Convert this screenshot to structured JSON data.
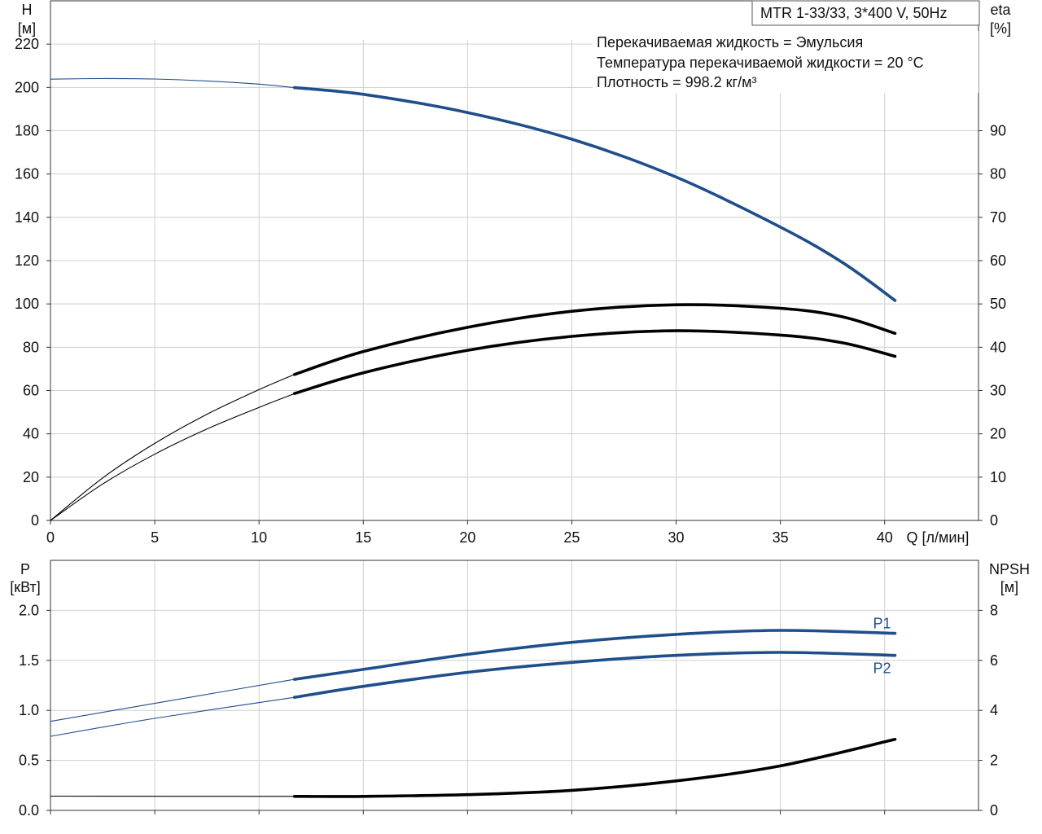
{
  "model_box": "MTR 1-33/33, 3*400 V, 50Hz",
  "info_lines": [
    "Перекачиваемая жидкость = Эмульсия",
    "Температура перекачиваемой жидкости = 20 °C",
    "Плотность = 998.2 кг/м³"
  ],
  "chart_data": [
    {
      "type": "line",
      "x_label": "Q [л/мин]",
      "x_ticks": [
        0,
        5,
        10,
        15,
        20,
        25,
        30,
        35,
        40
      ],
      "xlim": [
        0,
        44.5
      ],
      "grid": true,
      "left_axis": {
        "label_top": "H",
        "label_unit": "[м]",
        "ylim": [
          0,
          240
        ],
        "ticks": [
          0,
          20,
          40,
          60,
          80,
          100,
          120,
          140,
          160,
          180,
          200,
          220
        ]
      },
      "right_axis": {
        "label_top": "eta",
        "label_unit": "[%]",
        "ylim": [
          0,
          120
        ],
        "ticks": [
          0,
          10,
          20,
          30,
          40,
          50,
          60,
          70,
          80,
          90
        ]
      },
      "series": [
        {
          "axis": "left",
          "color": "#1f4e8c",
          "operating_range_start": 11.7,
          "points": [
            [
              0,
              203.8
            ],
            [
              2.5,
              204.1
            ],
            [
              5,
              203.9
            ],
            [
              7.5,
              203
            ],
            [
              10,
              201.5
            ],
            [
              11.7,
              199.9
            ],
            [
              15,
              196.8
            ],
            [
              20,
              188.4
            ],
            [
              25,
              176.1
            ],
            [
              30,
              158.6
            ],
            [
              35,
              135.5
            ],
            [
              38,
              119
            ],
            [
              40.5,
              101.6
            ]
          ]
        },
        {
          "axis": "right",
          "color": "#000000",
          "operating_range_start": 11.7,
          "points": [
            [
              0,
              0
            ],
            [
              2.5,
              9.8
            ],
            [
              5,
              17.8
            ],
            [
              7.5,
              24.5
            ],
            [
              10,
              30.2
            ],
            [
              11.7,
              33.7
            ],
            [
              15,
              39
            ],
            [
              20,
              44.6
            ],
            [
              25,
              48.3
            ],
            [
              30,
              49.8
            ],
            [
              35,
              49
            ],
            [
              38,
              47
            ],
            [
              40.5,
              43.2
            ]
          ]
        },
        {
          "axis": "right",
          "color": "#000000",
          "operating_range_start": 11.7,
          "points": [
            [
              0,
              0
            ],
            [
              2.5,
              8.4
            ],
            [
              5,
              15.3
            ],
            [
              7.5,
              21.1
            ],
            [
              10,
              26.1
            ],
            [
              11.7,
              29.3
            ],
            [
              15,
              34.1
            ],
            [
              20,
              39.3
            ],
            [
              25,
              42.5
            ],
            [
              30,
              43.8
            ],
            [
              35,
              42.8
            ],
            [
              38,
              41
            ],
            [
              40.5,
              37.9
            ]
          ]
        }
      ]
    },
    {
      "type": "line",
      "x_ticks": [
        0,
        5,
        10,
        15,
        20,
        25,
        30,
        35,
        40
      ],
      "xlim": [
        0,
        44.5
      ],
      "grid": true,
      "left_axis": {
        "label_top": "P",
        "label_unit": "[кВт]",
        "ylim": [
          0,
          2.5
        ],
        "ticks": [
          "0.0",
          "0.5",
          "1.0",
          "1.5",
          "2.0"
        ]
      },
      "right_axis": {
        "label_top": "NPSH",
        "label_unit": "[м]",
        "ylim": [
          0,
          10
        ],
        "ticks": [
          0,
          2,
          4,
          6,
          8
        ]
      },
      "series": [
        {
          "name": "P1",
          "axis": "left",
          "color": "#1f4e8c",
          "operating_range_start": 11.7,
          "points": [
            [
              0,
              0.89
            ],
            [
              5,
              1.07
            ],
            [
              11.7,
              1.31
            ],
            [
              15,
              1.41
            ],
            [
              20,
              1.56
            ],
            [
              25,
              1.68
            ],
            [
              30,
              1.76
            ],
            [
              35,
              1.8
            ],
            [
              40.5,
              1.77
            ]
          ]
        },
        {
          "name": "P2",
          "axis": "left",
          "color": "#1f4e8c",
          "operating_range_start": 11.7,
          "points": [
            [
              0,
              0.74
            ],
            [
              5,
              0.92
            ],
            [
              11.7,
              1.13
            ],
            [
              15,
              1.24
            ],
            [
              20,
              1.38
            ],
            [
              25,
              1.48
            ],
            [
              30,
              1.55
            ],
            [
              35,
              1.58
            ],
            [
              40.5,
              1.55
            ]
          ]
        },
        {
          "axis": "right",
          "color": "#000000",
          "operating_range_start": 11.7,
          "points": [
            [
              0,
              0.57
            ],
            [
              11.7,
              0.56
            ],
            [
              15,
              0.56
            ],
            [
              20,
              0.63
            ],
            [
              25,
              0.8
            ],
            [
              30,
              1.18
            ],
            [
              35,
              1.78
            ],
            [
              40.5,
              2.84
            ]
          ]
        }
      ]
    }
  ]
}
